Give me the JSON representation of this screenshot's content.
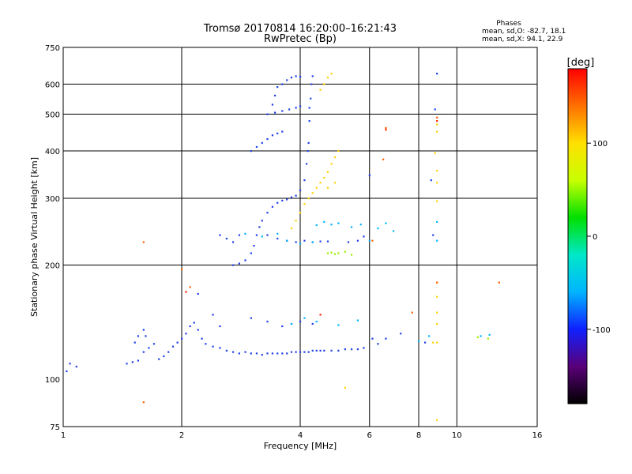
{
  "chart_data": {
    "type": "scatter",
    "title": "Tromsø 20170814 16:20:00–16:21:43",
    "subtitle": "RwPretec (Bp)",
    "xlabel": "Frequency [MHz]",
    "ylabel": "Stationary phase Virtual Height [km]",
    "x_scale": "log",
    "y_scale": "log",
    "xlim": [
      1,
      16
    ],
    "ylim": [
      75,
      750
    ],
    "x_ticks": [
      1,
      2,
      4,
      6,
      8,
      10,
      16
    ],
    "y_ticks": [
      75,
      100,
      200,
      300,
      400,
      500,
      600,
      750
    ],
    "grid_x": [
      2,
      4,
      6,
      8,
      10
    ],
    "grid_y": [
      200,
      300,
      400,
      500,
      600
    ],
    "grid": true,
    "stats": {
      "heading": "Phases",
      "line_o": "mean, sd,O: -82.7, 18.1",
      "line_x": "mean, sd,X:  94.1, 22.9"
    },
    "colorbar": {
      "label": "[deg]",
      "range": [
        -180,
        180
      ],
      "ticks": [
        100,
        0,
        -100
      ],
      "colormap": "rainbow",
      "stops": [
        "#000000",
        "#5a0078",
        "#1020ff",
        "#00b4ff",
        "#00e8c8",
        "#00e000",
        "#c8ff00",
        "#ffe000",
        "#ff7000",
        "#ff0000"
      ]
    },
    "series": [
      {
        "color": "#2040e8",
        "points": [
          [
            1.02,
            105
          ],
          [
            1.04,
            110
          ],
          [
            1.08,
            108
          ],
          [
            1.45,
            110
          ],
          [
            1.5,
            111
          ],
          [
            1.55,
            112
          ],
          [
            1.6,
            118
          ],
          [
            1.65,
            121
          ],
          [
            1.7,
            124
          ],
          [
            1.62,
            130
          ],
          [
            1.6,
            135
          ],
          [
            1.55,
            130
          ],
          [
            1.52,
            125
          ],
          [
            1.75,
            113
          ],
          [
            1.8,
            115
          ],
          [
            1.85,
            118
          ],
          [
            1.9,
            122
          ],
          [
            1.95,
            125
          ],
          [
            2.0,
            128
          ],
          [
            2.05,
            132
          ],
          [
            2.1,
            138
          ],
          [
            2.15,
            141
          ],
          [
            2.2,
            135
          ],
          [
            2.25,
            128
          ],
          [
            2.3,
            124
          ],
          [
            2.4,
            122
          ],
          [
            2.5,
            121
          ],
          [
            2.6,
            119
          ],
          [
            2.7,
            118
          ],
          [
            2.8,
            117
          ],
          [
            2.9,
            118
          ],
          [
            3.0,
            117
          ],
          [
            3.1,
            117
          ],
          [
            3.2,
            116
          ],
          [
            3.3,
            117
          ],
          [
            3.4,
            117
          ],
          [
            3.5,
            117
          ],
          [
            3.6,
            117
          ],
          [
            3.7,
            117
          ],
          [
            3.8,
            118
          ],
          [
            3.9,
            118
          ],
          [
            4.0,
            118
          ],
          [
            4.1,
            118
          ],
          [
            4.2,
            118
          ],
          [
            4.3,
            119
          ],
          [
            4.4,
            119
          ],
          [
            4.5,
            119
          ],
          [
            4.6,
            119
          ],
          [
            4.8,
            119
          ],
          [
            5.0,
            119
          ],
          [
            5.2,
            120
          ],
          [
            5.4,
            120
          ],
          [
            5.6,
            120
          ],
          [
            5.8,
            121
          ],
          [
            2.7,
            200
          ],
          [
            2.8,
            202
          ],
          [
            2.9,
            206
          ],
          [
            3.0,
            215
          ],
          [
            3.05,
            225
          ],
          [
            3.1,
            240
          ],
          [
            3.15,
            252
          ],
          [
            3.2,
            262
          ],
          [
            3.3,
            275
          ],
          [
            3.4,
            285
          ],
          [
            3.5,
            292
          ],
          [
            3.6,
            296
          ],
          [
            3.7,
            298
          ],
          [
            3.8,
            302
          ],
          [
            3.9,
            305
          ],
          [
            4.0,
            315
          ],
          [
            4.1,
            335
          ],
          [
            4.15,
            370
          ],
          [
            4.2,
            420
          ],
          [
            4.22,
            480
          ],
          [
            4.25,
            550
          ],
          [
            4.27,
            600
          ],
          [
            4.3,
            630
          ],
          [
            4.22,
            520
          ],
          [
            4.18,
            400
          ],
          [
            3.6,
            600
          ],
          [
            3.7,
            615
          ],
          [
            3.8,
            625
          ],
          [
            3.9,
            630
          ],
          [
            4.0,
            628
          ],
          [
            3.5,
            590
          ],
          [
            3.45,
            560
          ],
          [
            3.4,
            530
          ],
          [
            3.3,
            500
          ],
          [
            3.45,
            505
          ],
          [
            3.6,
            510
          ],
          [
            3.75,
            515
          ],
          [
            3.9,
            520
          ],
          [
            4.0,
            525
          ],
          [
            3.0,
            400
          ],
          [
            3.1,
            410
          ],
          [
            3.2,
            420
          ],
          [
            3.3,
            430
          ],
          [
            3.4,
            440
          ],
          [
            3.5,
            445
          ],
          [
            3.6,
            450
          ],
          [
            3.3,
            240
          ],
          [
            3.5,
            235
          ],
          [
            3.7,
            232
          ],
          [
            3.9,
            230
          ],
          [
            4.1,
            232
          ],
          [
            4.3,
            230
          ],
          [
            4.5,
            231
          ],
          [
            4.7,
            231
          ],
          [
            2.5,
            240
          ],
          [
            2.6,
            235
          ],
          [
            2.7,
            230
          ],
          [
            2.8,
            240
          ],
          [
            2.2,
            168
          ],
          [
            2.4,
            148
          ],
          [
            2.5,
            138
          ],
          [
            3.0,
            145
          ],
          [
            3.3,
            142
          ],
          [
            3.6,
            138
          ],
          [
            3.8,
            140
          ],
          [
            4.0,
            142
          ],
          [
            4.3,
            140
          ],
          [
            5.3,
            230
          ],
          [
            5.6,
            232
          ],
          [
            5.8,
            238
          ],
          [
            6.1,
            128
          ],
          [
            6.3,
            124
          ],
          [
            6.6,
            128
          ],
          [
            7.2,
            132
          ],
          [
            6.0,
            345
          ],
          [
            8.3,
            125
          ],
          [
            8.6,
            335
          ],
          [
            8.8,
            515
          ],
          [
            8.9,
            640
          ],
          [
            8.7,
            240
          ]
        ]
      },
      {
        "color": "#00b4ff",
        "points": [
          [
            3.7,
            232
          ],
          [
            4.0,
            228
          ],
          [
            4.3,
            230
          ],
          [
            4.4,
            255
          ],
          [
            4.6,
            260
          ],
          [
            4.8,
            256
          ],
          [
            5.0,
            258
          ],
          [
            5.4,
            252
          ],
          [
            5.7,
            256
          ],
          [
            6.0,
            232
          ],
          [
            6.3,
            250
          ],
          [
            6.6,
            258
          ],
          [
            6.9,
            246
          ],
          [
            3.2,
            238
          ],
          [
            3.5,
            242
          ],
          [
            2.9,
            242
          ],
          [
            3.8,
            140
          ],
          [
            4.1,
            145
          ],
          [
            4.4,
            142
          ],
          [
            5.0,
            139
          ],
          [
            5.6,
            143
          ],
          [
            8.0,
            126
          ],
          [
            8.5,
            130
          ],
          [
            8.9,
            260
          ],
          [
            8.9,
            232
          ],
          [
            11.5,
            130
          ],
          [
            12.1,
            131
          ]
        ]
      },
      {
        "color": "#ffd200",
        "points": [
          [
            3.8,
            250
          ],
          [
            3.9,
            262
          ],
          [
            4.0,
            275
          ],
          [
            4.1,
            290
          ],
          [
            4.2,
            300
          ],
          [
            4.3,
            310
          ],
          [
            4.4,
            320
          ],
          [
            4.5,
            330
          ],
          [
            4.6,
            340
          ],
          [
            4.7,
            352
          ],
          [
            4.8,
            370
          ],
          [
            4.9,
            385
          ],
          [
            5.0,
            400
          ],
          [
            4.7,
            320
          ],
          [
            4.9,
            330
          ],
          [
            4.5,
            580
          ],
          [
            4.6,
            600
          ],
          [
            4.7,
            625
          ],
          [
            4.8,
            640
          ],
          [
            8.9,
            180
          ],
          [
            8.9,
            165
          ],
          [
            8.9,
            150
          ],
          [
            8.9,
            140
          ],
          [
            8.9,
            125
          ],
          [
            8.9,
            295
          ],
          [
            8.9,
            330
          ],
          [
            8.9,
            355
          ],
          [
            8.9,
            470
          ],
          [
            8.9,
            450
          ],
          [
            8.8,
            395
          ],
          [
            8.7,
            125
          ],
          [
            8.9,
            78
          ],
          [
            5.2,
            95
          ]
        ]
      },
      {
        "color": "#a0f000",
        "points": [
          [
            4.7,
            215
          ],
          [
            4.8,
            216
          ],
          [
            4.9,
            214
          ],
          [
            5.0,
            215
          ],
          [
            5.2,
            217
          ],
          [
            5.4,
            213
          ],
          [
            11.3,
            129
          ],
          [
            12.0,
            128
          ]
        ]
      },
      {
        "color": "#ff6000",
        "points": [
          [
            1.6,
            230
          ],
          [
            1.6,
            87
          ],
          [
            2.0,
            195
          ],
          [
            2.1,
            175
          ],
          [
            6.6,
            460
          ],
          [
            8.9,
            490
          ],
          [
            8.9,
            180
          ],
          [
            7.7,
            150
          ],
          [
            6.5,
            380
          ],
          [
            12.8,
            180
          ],
          [
            6.1,
            232
          ]
        ]
      },
      {
        "color": "#ff2000",
        "points": [
          [
            6.6,
            455
          ],
          [
            8.9,
            480
          ],
          [
            4.5,
            148
          ],
          [
            2.05,
            170
          ]
        ]
      }
    ]
  }
}
